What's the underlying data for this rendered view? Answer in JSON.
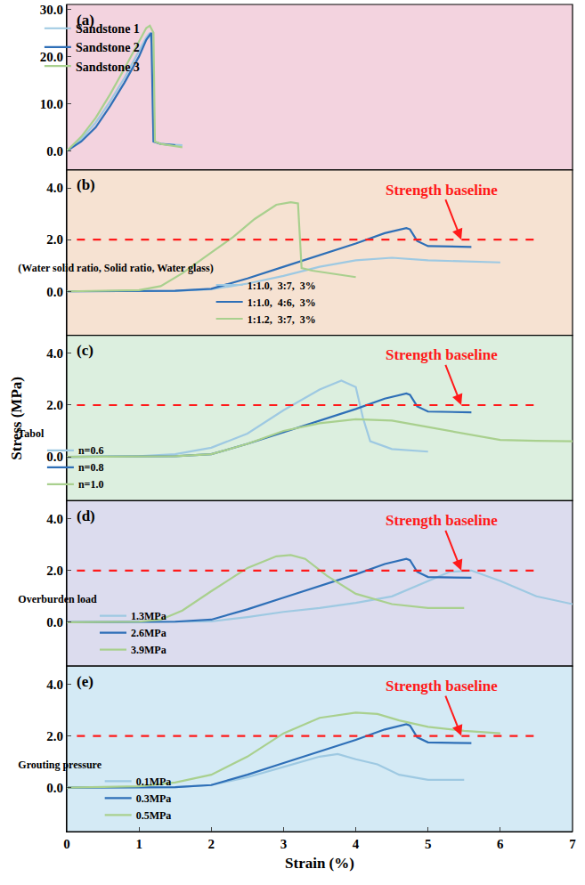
{
  "chart_data": {
    "type": "line",
    "xlabel": "Strain (%)",
    "ylabel": "Stress (MPa)",
    "xlim": [
      0,
      7
    ],
    "xticks": [
      0,
      1,
      2,
      3,
      4,
      5,
      6,
      7
    ],
    "panels": [
      {
        "label": "(a)",
        "ylim": [
          -4,
          31
        ],
        "yticks": [
          {
            "value": 0,
            "label": "0.0"
          },
          {
            "value": 10,
            "label": "10.0"
          },
          {
            "value": 20,
            "label": "20.0"
          },
          {
            "value": 30,
            "label": "30.0"
          }
        ],
        "legend": "upper center",
        "series": [
          {
            "name": "Sandstone 1",
            "color": "#9ec9e2",
            "x": [
              0,
              0.2,
              0.4,
              0.6,
              0.8,
              1.0,
              1.1,
              1.15,
              1.18,
              1.2,
              1.3,
              1.5,
              1.6
            ],
            "values": [
              0,
              2.5,
              6,
              10.5,
              15.5,
              21,
              24,
              25,
              22,
              2,
              1.5,
              1.3,
              1.2
            ]
          },
          {
            "name": "Sandstone 2",
            "color": "#2e6fb7",
            "x": [
              0,
              0.2,
              0.4,
              0.6,
              0.8,
              1.0,
              1.1,
              1.17,
              1.2,
              1.3,
              1.5
            ],
            "values": [
              0,
              2.0,
              5,
              9.5,
              14.5,
              20,
              23.5,
              25,
              2,
              1.5,
              1.2
            ]
          },
          {
            "name": "Sandstone 3",
            "color": "#a9d08e",
            "x": [
              0,
              0.2,
              0.4,
              0.6,
              0.8,
              1.0,
              1.1,
              1.15,
              1.2,
              1.22,
              1.3,
              1.6
            ],
            "values": [
              0,
              3,
              7,
              12,
              17.5,
              23,
              26,
              26.5,
              25,
              2,
              1.5,
              0.8
            ]
          }
        ]
      },
      {
        "label": "(b)",
        "ylim": [
          -1.7,
          4.7
        ],
        "yticks": [
          {
            "value": 0,
            "label": "0.0"
          },
          {
            "value": 2,
            "label": "2.0"
          },
          {
            "value": 4,
            "label": "4.0"
          }
        ],
        "legend": "lower left",
        "legend_title": "(Water solid ratio, Solid ratio, Water glass)",
        "baseline": 2.0,
        "baseline_label": "Strength baseline",
        "series": [
          {
            "name": "1:1.0,  3:7,  3%",
            "color": "#9ec9e2",
            "x": [
              0,
              1.5,
              2.0,
              2.5,
              3.0,
              3.5,
              4.0,
              4.5,
              5.0,
              5.5,
              6.0
            ],
            "values": [
              0,
              0.02,
              0.08,
              0.3,
              0.6,
              0.95,
              1.2,
              1.3,
              1.2,
              1.15,
              1.12
            ]
          },
          {
            "name": "1:1.0,  4:6,  3%",
            "color": "#2e6fb7",
            "x": [
              0,
              1.5,
              2.0,
              2.5,
              3.0,
              3.5,
              4.0,
              4.4,
              4.7,
              4.75,
              4.85,
              5.0,
              5.6
            ],
            "values": [
              0,
              0.02,
              0.1,
              0.5,
              0.95,
              1.4,
              1.85,
              2.25,
              2.45,
              2.4,
              1.95,
              1.75,
              1.72
            ]
          },
          {
            "name": "1:1.2,  3:7,  3%",
            "color": "#a9d08e",
            "x": [
              0,
              0.8,
              1.0,
              1.3,
              1.6,
              2.0,
              2.3,
              2.6,
              2.9,
              3.1,
              3.2,
              3.25,
              3.4,
              4.0
            ],
            "values": [
              0,
              0.02,
              0.05,
              0.2,
              0.7,
              1.5,
              2.1,
              2.8,
              3.35,
              3.45,
              3.4,
              0.9,
              0.8,
              0.55
            ]
          }
        ]
      },
      {
        "label": "(c)",
        "ylim": [
          -1.7,
          4.7
        ],
        "yticks": [
          {
            "value": 0,
            "label": "0.0"
          },
          {
            "value": 2,
            "label": "2.0"
          },
          {
            "value": 4,
            "label": "4.0"
          }
        ],
        "legend": "lower left",
        "legend_title": "Tabol",
        "baseline": 2.0,
        "baseline_label": "Strength baseline",
        "series": [
          {
            "name": "n=0.6",
            "color": "#9ec9e2",
            "x": [
              0,
              1.0,
              1.5,
              2.0,
              2.5,
              3.0,
              3.5,
              3.8,
              4.0,
              4.1,
              4.2,
              4.5,
              5.0
            ],
            "values": [
              0,
              0.02,
              0.1,
              0.35,
              0.9,
              1.8,
              2.6,
              2.95,
              2.7,
              1.5,
              0.6,
              0.3,
              0.2
            ]
          },
          {
            "name": "n=0.8",
            "color": "#2e6fb7",
            "x": [
              0,
              1.5,
              2.0,
              2.5,
              3.0,
              3.5,
              4.0,
              4.4,
              4.7,
              4.75,
              4.85,
              5.0,
              5.6
            ],
            "values": [
              0,
              0.02,
              0.1,
              0.5,
              0.95,
              1.4,
              1.85,
              2.25,
              2.45,
              2.4,
              1.95,
              1.75,
              1.72
            ]
          },
          {
            "name": "n=1.0",
            "color": "#a9d08e",
            "x": [
              0,
              1.5,
              2.0,
              2.5,
              3.0,
              3.5,
              4.0,
              4.5,
              5.0,
              5.5,
              6.0,
              6.5,
              7.0
            ],
            "values": [
              0,
              0.02,
              0.1,
              0.5,
              1.0,
              1.3,
              1.45,
              1.4,
              1.15,
              0.9,
              0.65,
              0.62,
              0.6
            ]
          }
        ]
      },
      {
        "label": "(d)",
        "ylim": [
          -1.7,
          4.7
        ],
        "yticks": [
          {
            "value": 0,
            "label": "0.0"
          },
          {
            "value": 2,
            "label": "2.0"
          },
          {
            "value": 4,
            "label": "4.0"
          }
        ],
        "legend": "lower left",
        "legend_title": "Overburden load",
        "baseline": 2.0,
        "baseline_label": "Strength baseline",
        "series": [
          {
            "name": "1.3MPa",
            "color": "#9ec9e2",
            "x": [
              0,
              2.0,
              2.5,
              3.0,
              3.5,
              4.0,
              4.5,
              5.0,
              5.3,
              5.6,
              6.0,
              6.5,
              7.0
            ],
            "values": [
              0,
              0.03,
              0.2,
              0.4,
              0.55,
              0.75,
              1.0,
              1.6,
              1.95,
              2.0,
              1.6,
              1.0,
              0.7
            ]
          },
          {
            "name": "2.6MPa",
            "color": "#2e6fb7",
            "x": [
              0,
              1.5,
              2.0,
              2.5,
              3.0,
              3.5,
              4.0,
              4.4,
              4.7,
              4.75,
              4.85,
              5.0,
              5.6
            ],
            "values": [
              0,
              0.02,
              0.1,
              0.5,
              0.95,
              1.4,
              1.85,
              2.25,
              2.45,
              2.4,
              1.95,
              1.75,
              1.72
            ]
          },
          {
            "name": "3.9MPa",
            "color": "#a9d08e",
            "x": [
              0,
              1.0,
              1.3,
              1.6,
              2.0,
              2.5,
              2.9,
              3.1,
              3.3,
              3.6,
              4.0,
              4.5,
              5.0,
              5.5
            ],
            "values": [
              0,
              0.02,
              0.1,
              0.45,
              1.2,
              2.1,
              2.55,
              2.6,
              2.45,
              1.8,
              1.1,
              0.7,
              0.55,
              0.55
            ]
          }
        ]
      },
      {
        "label": "(e)",
        "ylim": [
          -1.7,
          4.7
        ],
        "yticks": [
          {
            "value": 0,
            "label": "0.0"
          },
          {
            "value": 2,
            "label": "2.0"
          },
          {
            "value": 4,
            "label": "4.0"
          }
        ],
        "legend": "lower left",
        "legend_title": "Grouting pressure",
        "baseline": 2.0,
        "baseline_label": "Strength baseline",
        "series": [
          {
            "name": "0.1MPa",
            "color": "#9ec9e2",
            "x": [
              0,
              1.5,
              2.0,
              2.5,
              3.0,
              3.5,
              3.75,
              4.0,
              4.3,
              4.6,
              5.0,
              5.5
            ],
            "values": [
              0,
              0.02,
              0.1,
              0.4,
              0.8,
              1.2,
              1.3,
              1.1,
              0.9,
              0.5,
              0.3,
              0.3
            ]
          },
          {
            "name": "0.3MPa",
            "color": "#2e6fb7",
            "x": [
              0,
              1.5,
              2.0,
              2.5,
              3.0,
              3.5,
              4.0,
              4.4,
              4.7,
              4.75,
              4.85,
              5.0,
              5.6
            ],
            "values": [
              0,
              0.02,
              0.1,
              0.5,
              0.95,
              1.4,
              1.85,
              2.25,
              2.45,
              2.4,
              1.95,
              1.75,
              1.72
            ]
          },
          {
            "name": "0.5MPa",
            "color": "#a9d08e",
            "x": [
              0,
              1.0,
              1.5,
              2.0,
              2.5,
              3.0,
              3.5,
              4.0,
              4.3,
              4.6,
              5.0,
              5.5,
              6.0
            ],
            "values": [
              0,
              0.05,
              0.2,
              0.5,
              1.2,
              2.1,
              2.7,
              2.9,
              2.85,
              2.6,
              2.35,
              2.2,
              2.1
            ]
          }
        ]
      }
    ]
  }
}
